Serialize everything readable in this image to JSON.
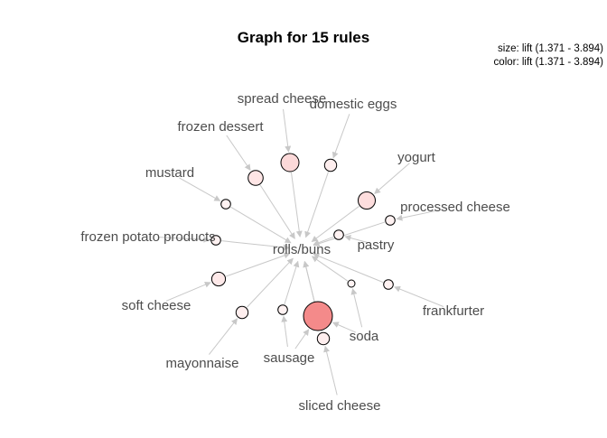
{
  "title": "Graph for 15 rules",
  "legend": {
    "size_line": "size: lift (1.371 - 3.894)",
    "color_line": "color: lift (1.371 - 3.894)"
  },
  "colors": {
    "edge": "#c8c8c8",
    "label": "#4d4d4d",
    "node_low": "#fff3f3",
    "node_high": "#f48a8a",
    "node_stroke": "#000000"
  },
  "center_item": "rolls/buns",
  "items": [
    "spread cheese",
    "domestic eggs",
    "frozen dessert",
    "yogurt",
    "mustard",
    "processed cheese",
    "frozen potato products",
    "pastry",
    "soft cheese",
    "frankfurter",
    "mayonnaise",
    "soda",
    "sausage",
    "sliced cheese"
  ],
  "chart_data": {
    "type": "graph",
    "title": "Graph for 15 rules",
    "size_measure": "lift",
    "color_measure": "lift",
    "lift_range": [
      1.371,
      3.894
    ],
    "rules": [
      {
        "lhs": "spread cheese",
        "rhs": "rolls/buns",
        "lift": 2.0
      },
      {
        "lhs": "domestic eggs",
        "rhs": "rolls/buns",
        "lift": 1.5
      },
      {
        "lhs": "frozen dessert",
        "rhs": "rolls/buns",
        "lift": 1.7
      },
      {
        "lhs": "mustard",
        "rhs": "rolls/buns",
        "lift": 1.4
      },
      {
        "lhs": "yogurt",
        "rhs": "rolls/buns",
        "lift": 1.9
      },
      {
        "lhs": "processed cheese",
        "rhs": "rolls/buns",
        "lift": 1.4
      },
      {
        "lhs": "frozen potato products",
        "rhs": "rolls/buns",
        "lift": 1.4
      },
      {
        "lhs": "pastry",
        "rhs": "rolls/buns",
        "lift": 1.4
      },
      {
        "lhs": "soft cheese",
        "rhs": "rolls/buns",
        "lift": 1.6
      },
      {
        "lhs": "frankfurter",
        "rhs": "rolls/buns",
        "lift": 1.4
      },
      {
        "lhs": "mayonnaise",
        "rhs": "rolls/buns",
        "lift": 1.5
      },
      {
        "lhs": "sausage",
        "rhs": "rolls/buns",
        "lift": 1.4
      },
      {
        "lhs": "sliced cheese",
        "rhs": "rolls/buns",
        "lift": 1.5
      },
      {
        "lhs": "soda",
        "rhs": "rolls/buns",
        "lift": 1.371
      },
      {
        "lhs": "soda, sausage",
        "rhs": "rolls/buns",
        "lift": 3.894
      }
    ]
  }
}
